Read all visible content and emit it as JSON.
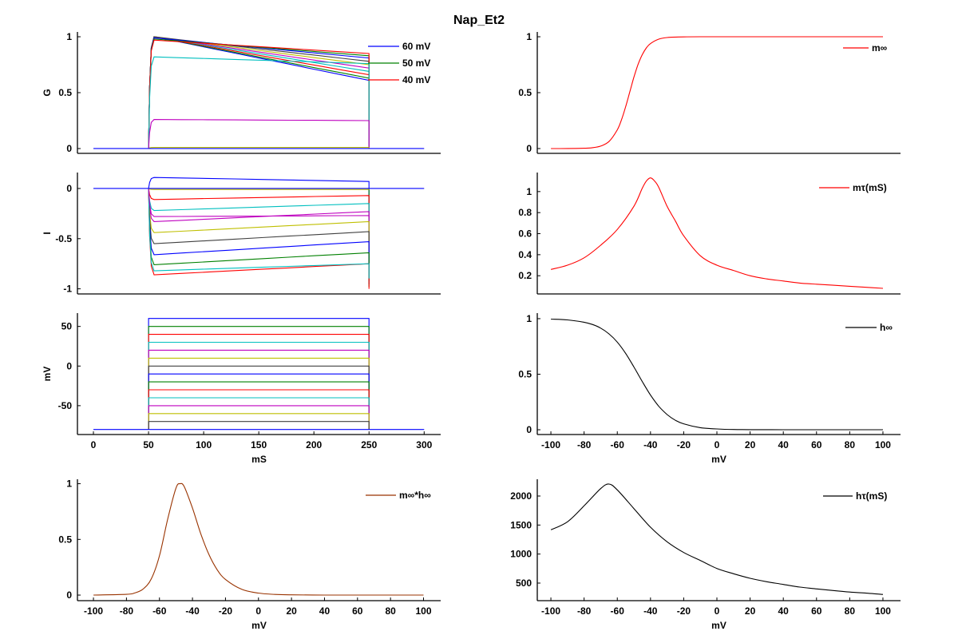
{
  "title": "Nap_Et2",
  "trace_colors": {
    "blue": "#0000ff",
    "green": "#008000",
    "red": "#ff0000",
    "cyan": "#00bfbf",
    "magenta": "#bf00bf",
    "yellow": "#bfbf00",
    "black": "#404040",
    "brown": "#993300",
    "curve_black": "#000000"
  },
  "protocol": {
    "holding_mV": -80,
    "step_start_mS": 50,
    "step_end_mS": 250,
    "end_mS": 300
  },
  "traces": [
    {
      "v": 60,
      "color": "#0000ff",
      "g_peak": 1.0,
      "g_end": 0.61,
      "i_peak": 0.11,
      "i_end": 0.07
    },
    {
      "v": 50,
      "color": "#008000",
      "g_peak": 1.0,
      "g_end": 0.63,
      "i_peak": 0.0,
      "i_end": 0.0
    },
    {
      "v": 40,
      "color": "#ff0000",
      "g_peak": 1.0,
      "g_end": 0.66,
      "i_peak": -0.11,
      "i_end": -0.07
    },
    {
      "v": 30,
      "color": "#00bfbf",
      "g_peak": 1.0,
      "g_end": 0.69,
      "i_peak": -0.22,
      "i_end": -0.15
    },
    {
      "v": 20,
      "color": "#bf00bf",
      "g_peak": 1.0,
      "g_end": 0.72,
      "i_peak": -0.33,
      "i_end": -0.23
    },
    {
      "v": 10,
      "color": "#bfbf00",
      "g_peak": 1.0,
      "g_end": 0.75,
      "i_peak": -0.44,
      "i_end": -0.33
    },
    {
      "v": 0,
      "color": "#404040",
      "g_peak": 1.0,
      "g_end": 0.78,
      "i_peak": -0.55,
      "i_end": -0.43
    },
    {
      "v": -10,
      "color": "#0000ff",
      "g_peak": 0.99,
      "g_end": 0.81,
      "i_peak": -0.66,
      "i_end": -0.53
    },
    {
      "v": -20,
      "color": "#008000",
      "g_peak": 0.98,
      "g_end": 0.83,
      "i_peak": -0.76,
      "i_end": -0.64
    },
    {
      "v": -30,
      "color": "#ff0000",
      "g_peak": 0.97,
      "g_end": 0.85,
      "i_peak": -0.86,
      "i_end": -0.75
    },
    {
      "v": -40,
      "color": "#00bfbf",
      "g_peak": 0.82,
      "g_end": 0.76,
      "i_peak": -0.82,
      "i_end": -0.75
    },
    {
      "v": -50,
      "color": "#bf00bf",
      "g_peak": 0.26,
      "g_end": 0.25,
      "i_peak": -0.28,
      "i_end": -0.27
    },
    {
      "v": -60,
      "color": "#bfbf00",
      "g_peak": 0.01,
      "g_end": 0.01,
      "i_peak": -0.01,
      "i_end": -0.01
    },
    {
      "v": -70,
      "color": "#404040",
      "g_peak": 0.0,
      "g_end": 0.0,
      "i_peak": 0.0,
      "i_end": 0.0
    }
  ],
  "chart_data": [
    {
      "id": "G",
      "type": "line",
      "title": "",
      "xlabel": "",
      "ylabel": "G",
      "xlim": [
        -14.5,
        315
      ],
      "ylim": [
        -0.043,
        1.043
      ],
      "xticks": [],
      "yticks": [
        {
          "v": 0,
          "label": "0"
        },
        {
          "v": 0.5,
          "label": "0.5"
        },
        {
          "v": 1,
          "label": "1"
        }
      ],
      "legend": {
        "placement": "top-right",
        "entries": [
          {
            "label": "60 mV",
            "color": "#0000ff"
          },
          {
            "label": "50 mV",
            "color": "#008000"
          },
          {
            "label": "40 mV",
            "color": "#ff0000"
          }
        ]
      },
      "series_source": "traces.g"
    },
    {
      "id": "I",
      "type": "line",
      "title": "",
      "xlabel": "",
      "ylabel": "I",
      "xlim": [
        -14.5,
        315
      ],
      "ylim": [
        -1.051,
        0.159
      ],
      "xticks": [],
      "yticks": [
        {
          "v": -1,
          "label": "-1"
        },
        {
          "v": -0.5,
          "label": "-0.5"
        },
        {
          "v": 0,
          "label": "0"
        }
      ],
      "legend": null,
      "series_source": "traces.i"
    },
    {
      "id": "V",
      "type": "line",
      "title": "",
      "xlabel": "mS",
      "ylabel": "mV",
      "xlim": [
        -14.5,
        315
      ],
      "ylim": [
        -86.4,
        66.8
      ],
      "xticks": [
        {
          "v": 0,
          "label": "0"
        },
        {
          "v": 50,
          "label": "50"
        },
        {
          "v": 100,
          "label": "100"
        },
        {
          "v": 150,
          "label": "150"
        },
        {
          "v": 200,
          "label": "200"
        },
        {
          "v": 250,
          "label": "250"
        },
        {
          "v": 300,
          "label": "300"
        }
      ],
      "yticks": [
        {
          "v": -50,
          "label": "-50"
        },
        {
          "v": 0,
          "label": "0"
        },
        {
          "v": 50,
          "label": "50"
        }
      ],
      "legend": null,
      "series_source": "traces.v"
    },
    {
      "id": "mh",
      "type": "line",
      "title": "",
      "xlabel": "mV",
      "ylabel": "",
      "xlim": [
        -109.7,
        110.4
      ],
      "ylim": [
        -0.05,
        1.04
      ],
      "xticks": [
        {
          "v": -100,
          "label": "-100"
        },
        {
          "v": -80,
          "label": "-80"
        },
        {
          "v": -60,
          "label": "-60"
        },
        {
          "v": -40,
          "label": "-40"
        },
        {
          "v": -20,
          "label": "-20"
        },
        {
          "v": 0,
          "label": "0"
        },
        {
          "v": 20,
          "label": "20"
        },
        {
          "v": 40,
          "label": "40"
        },
        {
          "v": 60,
          "label": "60"
        },
        {
          "v": 80,
          "label": "80"
        },
        {
          "v": 100,
          "label": "100"
        }
      ],
      "yticks": [
        {
          "v": 0,
          "label": "0"
        },
        {
          "v": 0.5,
          "label": "0.5"
        },
        {
          "v": 1,
          "label": "1"
        }
      ],
      "legend": {
        "placement": "top-right",
        "entries": [
          {
            "label": "m∞*h∞",
            "color": "#993300"
          }
        ]
      },
      "series": [
        {
          "name": "m∞*h∞",
          "color": "#993300",
          "x": [
            -100,
            -80,
            -75,
            -70,
            -65,
            -60,
            -55,
            -50,
            -47.5,
            -45,
            -40,
            -35,
            -30,
            -25,
            -20,
            -10,
            0,
            10,
            20,
            40,
            60,
            80,
            100
          ],
          "y": [
            0,
            0.007,
            0.019,
            0.053,
            0.144,
            0.352,
            0.683,
            0.96,
            1.0,
            0.973,
            0.781,
            0.552,
            0.363,
            0.227,
            0.141,
            0.051,
            0.018,
            0.006,
            0.002,
            0,
            0,
            0,
            0
          ]
        }
      ]
    },
    {
      "id": "minf",
      "type": "line",
      "title": "",
      "xlabel": "",
      "ylabel": "",
      "xlim": [
        -108.2,
        110.6
      ],
      "ylim": [
        -0.043,
        1.043
      ],
      "xticks": [],
      "yticks": [
        {
          "v": 0,
          "label": "0"
        },
        {
          "v": 0.5,
          "label": "0.5"
        },
        {
          "v": 1,
          "label": "1"
        }
      ],
      "legend": {
        "placement": "top-right",
        "entries": [
          {
            "label": "m∞",
            "color": "#ff0000"
          }
        ]
      },
      "series": [
        {
          "name": "m∞",
          "color": "#ff0000",
          "x": [
            -100,
            -90,
            -80,
            -75,
            -70,
            -65,
            -60,
            -57.5,
            -55,
            -52.5,
            -50,
            -47.5,
            -45,
            -42.5,
            -40,
            -35,
            -30,
            -20,
            -10,
            0,
            20,
            40,
            60,
            80,
            100
          ],
          "y": [
            0,
            0.0003,
            0.0026,
            0.0076,
            0.022,
            0.063,
            0.167,
            0.256,
            0.372,
            0.505,
            0.638,
            0.752,
            0.839,
            0.9,
            0.939,
            0.979,
            0.993,
            0.999,
            1,
            1,
            1,
            1,
            1,
            1,
            1
          ]
        }
      ]
    },
    {
      "id": "mtau",
      "type": "line",
      "title": "",
      "xlabel": "",
      "ylabel": "",
      "xlim": [
        -108.2,
        110.6
      ],
      "ylim": [
        0.027,
        1.181
      ],
      "xticks": [],
      "yticks": [
        {
          "v": 0.2,
          "label": "0.2"
        },
        {
          "v": 0.4,
          "label": "0.4"
        },
        {
          "v": 0.6,
          "label": "0.6"
        },
        {
          "v": 0.8,
          "label": "0.8"
        },
        {
          "v": 1,
          "label": "1"
        }
      ],
      "legend": {
        "placement": "top-right",
        "entries": [
          {
            "label": "mτ(mS)",
            "color": "#ff0000"
          }
        ]
      },
      "series": [
        {
          "name": "mτ(mS)",
          "color": "#ff0000",
          "x": [
            -100,
            -90,
            -80,
            -70,
            -60,
            -50,
            -45,
            -42.5,
            -40,
            -37.5,
            -35,
            -30,
            -25,
            -20,
            -10,
            0,
            10,
            20,
            30,
            40,
            50,
            60,
            70,
            80,
            90,
            100
          ],
          "y": [
            0.26,
            0.3,
            0.37,
            0.49,
            0.64,
            0.86,
            1.03,
            1.1,
            1.13,
            1.1,
            1.04,
            0.86,
            0.72,
            0.58,
            0.39,
            0.3,
            0.25,
            0.2,
            0.17,
            0.15,
            0.13,
            0.12,
            0.11,
            0.1,
            0.09,
            0.08
          ]
        }
      ]
    },
    {
      "id": "hinf",
      "type": "line",
      "title": "",
      "xlabel": "mV",
      "ylabel": "",
      "xlim": [
        -108.2,
        110.6
      ],
      "ylim": [
        -0.043,
        1.05
      ],
      "xticks": [
        {
          "v": -100,
          "label": "-100"
        },
        {
          "v": -80,
          "label": "-80"
        },
        {
          "v": -60,
          "label": "-60"
        },
        {
          "v": -40,
          "label": "-40"
        },
        {
          "v": -20,
          "label": "-20"
        },
        {
          "v": 0,
          "label": "0"
        },
        {
          "v": 20,
          "label": "20"
        },
        {
          "v": 40,
          "label": "40"
        },
        {
          "v": 60,
          "label": "60"
        },
        {
          "v": 80,
          "label": "80"
        },
        {
          "v": 100,
          "label": "100"
        }
      ],
      "yticks": [
        {
          "v": 0,
          "label": "0"
        },
        {
          "v": 0.5,
          "label": "0.5"
        },
        {
          "v": 1,
          "label": "1"
        }
      ],
      "legend": {
        "placement": "top-right",
        "entries": [
          {
            "label": "h∞",
            "color": "#000000"
          }
        ]
      },
      "series": [
        {
          "name": "h∞",
          "color": "#000000",
          "x": [
            -100,
            -90,
            -80,
            -75,
            -70,
            -65,
            -60,
            -55,
            -50,
            -45,
            -40,
            -35,
            -30,
            -25,
            -20,
            -10,
            0,
            10,
            20,
            40,
            60,
            80,
            100
          ],
          "y": [
            0.996,
            0.989,
            0.968,
            0.948,
            0.915,
            0.863,
            0.789,
            0.688,
            0.565,
            0.435,
            0.312,
            0.211,
            0.137,
            0.085,
            0.053,
            0.019,
            0.007,
            0.002,
            0.001,
            0,
            0,
            0,
            0
          ]
        }
      ]
    },
    {
      "id": "htau",
      "type": "line",
      "title": "",
      "xlabel": "mV",
      "ylabel": "",
      "xlim": [
        -108.2,
        110.6
      ],
      "ylim": [
        197,
        2289
      ],
      "xticks": [
        {
          "v": -100,
          "label": "-100"
        },
        {
          "v": -80,
          "label": "-80"
        },
        {
          "v": -60,
          "label": "-60"
        },
        {
          "v": -40,
          "label": "-40"
        },
        {
          "v": -20,
          "label": "-20"
        },
        {
          "v": 0,
          "label": "0"
        },
        {
          "v": 20,
          "label": "20"
        },
        {
          "v": 40,
          "label": "40"
        },
        {
          "v": 60,
          "label": "60"
        },
        {
          "v": 80,
          "label": "80"
        },
        {
          "v": 100,
          "label": "100"
        }
      ],
      "yticks": [
        {
          "v": 500,
          "label": "500"
        },
        {
          "v": 1000,
          "label": "1000"
        },
        {
          "v": 1500,
          "label": "1500"
        },
        {
          "v": 2000,
          "label": "2000"
        }
      ],
      "legend": {
        "placement": "top-right",
        "entries": [
          {
            "label": "hτ(mS)",
            "color": "#000000"
          }
        ]
      },
      "series": [
        {
          "name": "hτ(mS)",
          "color": "#000000",
          "x": [
            -100,
            -90,
            -80,
            -70,
            -65,
            -60,
            -50,
            -40,
            -30,
            -20,
            -10,
            0,
            10,
            20,
            30,
            40,
            50,
            60,
            70,
            80,
            90,
            100
          ],
          "y": [
            1418,
            1555,
            1830,
            2128,
            2206,
            2106,
            1784,
            1463,
            1211,
            1027,
            890,
            752,
            661,
            583,
            523,
            477,
            431,
            400,
            372,
            345,
            326,
            304
          ]
        }
      ]
    }
  ]
}
